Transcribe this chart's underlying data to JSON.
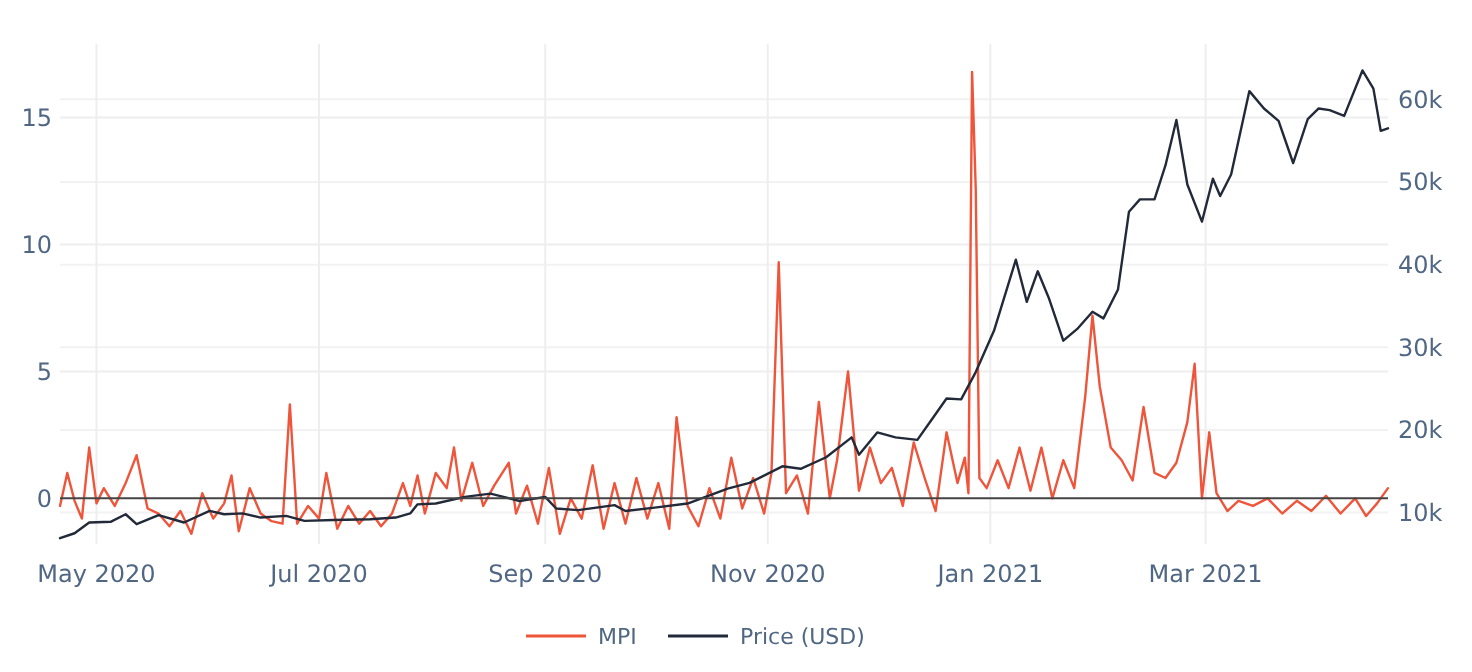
{
  "chart_data": {
    "type": "line",
    "xlim": [
      "2020-04-21",
      "2021-04-20"
    ],
    "xticks": [
      {
        "value": "2020-05-01",
        "label": "May 2020"
      },
      {
        "value": "2020-07-01",
        "label": "Jul 2020"
      },
      {
        "value": "2020-09-01",
        "label": "Sep 2020"
      },
      {
        "value": "2020-11-01",
        "label": "Nov 2020"
      },
      {
        "value": "2021-01-01",
        "label": "Jan 2021"
      },
      {
        "value": "2021-03-01",
        "label": "Mar 2021"
      }
    ],
    "ylim": [
      -1.8,
      17.9
    ],
    "yticks": [
      0,
      5,
      10,
      15
    ],
    "y2lim": [
      6200,
      66700
    ],
    "y2ticks": [
      {
        "value": 10000,
        "label": "10k"
      },
      {
        "value": 20000,
        "label": "20k"
      },
      {
        "value": 30000,
        "label": "30k"
      },
      {
        "value": 40000,
        "label": "40k"
      },
      {
        "value": 50000,
        "label": "50k"
      },
      {
        "value": 60000,
        "label": "60k"
      }
    ],
    "grid": true,
    "legend": "bottom",
    "line_style": "solid",
    "marker": "none",
    "series": [
      {
        "name": "MPI",
        "color": "#ef553b",
        "x": [
          "2020-04-21",
          "2020-04-23",
          "2020-04-25",
          "2020-04-27",
          "2020-04-29",
          "2020-05-01",
          "2020-05-03",
          "2020-05-06",
          "2020-05-09",
          "2020-05-12",
          "2020-05-15",
          "2020-05-18",
          "2020-05-21",
          "2020-05-24",
          "2020-05-27",
          "2020-05-30",
          "2020-06-02",
          "2020-06-05",
          "2020-06-07",
          "2020-06-09",
          "2020-06-12",
          "2020-06-15",
          "2020-06-18",
          "2020-06-21",
          "2020-06-23",
          "2020-06-25",
          "2020-06-28",
          "2020-07-01",
          "2020-07-03",
          "2020-07-06",
          "2020-07-09",
          "2020-07-12",
          "2020-07-15",
          "2020-07-18",
          "2020-07-21",
          "2020-07-24",
          "2020-07-26",
          "2020-07-28",
          "2020-07-30",
          "2020-08-02",
          "2020-08-05",
          "2020-08-07",
          "2020-08-09",
          "2020-08-12",
          "2020-08-15",
          "2020-08-18",
          "2020-08-22",
          "2020-08-24",
          "2020-08-27",
          "2020-08-30",
          "2020-09-02",
          "2020-09-05",
          "2020-09-08",
          "2020-09-11",
          "2020-09-14",
          "2020-09-17",
          "2020-09-20",
          "2020-09-23",
          "2020-09-26",
          "2020-09-29",
          "2020-10-02",
          "2020-10-05",
          "2020-10-07",
          "2020-10-10",
          "2020-10-13",
          "2020-10-16",
          "2020-10-19",
          "2020-10-22",
          "2020-10-25",
          "2020-10-28",
          "2020-10-31",
          "2020-11-02",
          "2020-11-04",
          "2020-11-06",
          "2020-11-09",
          "2020-11-12",
          "2020-11-15",
          "2020-11-18",
          "2020-11-20",
          "2020-11-23",
          "2020-11-26",
          "2020-11-29",
          "2020-12-02",
          "2020-12-05",
          "2020-12-08",
          "2020-12-11",
          "2020-12-14",
          "2020-12-17",
          "2020-12-20",
          "2020-12-23",
          "2020-12-25",
          "2020-12-26",
          "2020-12-27",
          "2020-12-28",
          "2020-12-29",
          "2020-12-31",
          "2021-01-03",
          "2021-01-06",
          "2021-01-09",
          "2021-01-12",
          "2021-01-15",
          "2021-01-18",
          "2021-01-21",
          "2021-01-24",
          "2021-01-27",
          "2021-01-29",
          "2021-01-31",
          "2021-02-03",
          "2021-02-06",
          "2021-02-09",
          "2021-02-12",
          "2021-02-15",
          "2021-02-18",
          "2021-02-21",
          "2021-02-24",
          "2021-02-26",
          "2021-02-28",
          "2021-03-02",
          "2021-03-04",
          "2021-03-07",
          "2021-03-10",
          "2021-03-14",
          "2021-03-18",
          "2021-03-22",
          "2021-03-26",
          "2021-03-30",
          "2021-04-03",
          "2021-04-07",
          "2021-04-11",
          "2021-04-14",
          "2021-04-17",
          "2021-04-20"
        ],
        "values": [
          -0.3,
          1.0,
          -0.1,
          -0.8,
          2.0,
          -0.2,
          0.4,
          -0.3,
          0.6,
          1.7,
          -0.4,
          -0.6,
          -1.1,
          -0.5,
          -1.4,
          0.2,
          -0.8,
          -0.2,
          0.9,
          -1.3,
          0.4,
          -0.6,
          -0.9,
          -1.0,
          3.7,
          -1.0,
          -0.3,
          -0.8,
          1.0,
          -1.2,
          -0.3,
          -1.0,
          -0.5,
          -1.1,
          -0.6,
          0.6,
          -0.3,
          0.9,
          -0.6,
          1.0,
          0.4,
          2.0,
          -0.1,
          1.4,
          -0.3,
          0.5,
          1.4,
          -0.6,
          0.5,
          -1.0,
          1.2,
          -1.4,
          0.0,
          -0.8,
          1.3,
          -1.2,
          0.6,
          -1.0,
          0.8,
          -0.8,
          0.6,
          -1.2,
          3.2,
          -0.3,
          -1.1,
          0.4,
          -0.8,
          1.6,
          -0.4,
          0.8,
          -0.6,
          1.0,
          9.3,
          0.2,
          0.9,
          -0.6,
          3.8,
          0.0,
          1.5,
          5.0,
          0.3,
          2.0,
          0.6,
          1.2,
          -0.3,
          2.2,
          0.8,
          -0.5,
          2.6,
          0.6,
          1.6,
          0.2,
          16.8,
          12.2,
          0.8,
          0.4,
          1.5,
          0.4,
          2.0,
          0.3,
          2.0,
          0.0,
          1.5,
          0.4,
          4.0,
          7.2,
          4.4,
          2.0,
          1.5,
          0.7,
          3.6,
          1.0,
          0.8,
          1.4,
          3.0,
          5.3,
          0.0,
          2.6,
          0.2,
          -0.5,
          -0.1,
          -0.3,
          0.0,
          -0.6,
          -0.1,
          -0.5,
          0.1,
          -0.6,
          0.0,
          -0.7,
          -0.2,
          0.4
        ]
      },
      {
        "name": "Price (USD)",
        "color": "#222a3a",
        "axis": "y2",
        "x": [
          "2020-04-21",
          "2020-04-25",
          "2020-04-29",
          "2020-05-05",
          "2020-05-09",
          "2020-05-12",
          "2020-05-18",
          "2020-05-25",
          "2020-06-01",
          "2020-06-05",
          "2020-06-10",
          "2020-06-15",
          "2020-06-22",
          "2020-06-27",
          "2020-07-05",
          "2020-07-15",
          "2020-07-22",
          "2020-07-26",
          "2020-07-28",
          "2020-08-02",
          "2020-08-10",
          "2020-08-17",
          "2020-08-25",
          "2020-09-01",
          "2020-09-04",
          "2020-09-10",
          "2020-09-20",
          "2020-09-23",
          "2020-10-01",
          "2020-10-10",
          "2020-10-21",
          "2020-10-27",
          "2020-11-05",
          "2020-11-10",
          "2020-11-17",
          "2020-11-24",
          "2020-11-26",
          "2020-12-01",
          "2020-12-06",
          "2020-12-12",
          "2020-12-16",
          "2020-12-20",
          "2020-12-24",
          "2020-12-28",
          "2021-01-02",
          "2021-01-08",
          "2021-01-11",
          "2021-01-14",
          "2021-01-17",
          "2021-01-21",
          "2021-01-25",
          "2021-01-29",
          "2021-02-01",
          "2021-02-05",
          "2021-02-08",
          "2021-02-11",
          "2021-02-15",
          "2021-02-18",
          "2021-02-21",
          "2021-02-24",
          "2021-02-28",
          "2021-03-03",
          "2021-03-05",
          "2021-03-08",
          "2021-03-13",
          "2021-03-17",
          "2021-03-21",
          "2021-03-25",
          "2021-03-29",
          "2021-04-01",
          "2021-04-04",
          "2021-04-08",
          "2021-04-13",
          "2021-04-16",
          "2021-04-18",
          "2021-04-20"
        ],
        "values": [
          6900,
          7500,
          8800,
          8900,
          9800,
          8600,
          9700,
          8800,
          10200,
          9800,
          9900,
          9400,
          9600,
          9000,
          9100,
          9200,
          9400,
          9900,
          11000,
          11100,
          11900,
          12300,
          11400,
          11900,
          10500,
          10300,
          10900,
          10200,
          10600,
          11100,
          12900,
          13600,
          15600,
          15300,
          16700,
          19100,
          17000,
          19700,
          19100,
          18800,
          21300,
          23800,
          23700,
          27000,
          32000,
          40600,
          35500,
          39200,
          36000,
          30800,
          32300,
          34300,
          33500,
          37000,
          46400,
          47900,
          47900,
          52000,
          57500,
          49700,
          45200,
          50400,
          48300,
          50900,
          61000,
          58900,
          57400,
          52300,
          57600,
          58900,
          58700,
          58000,
          63500,
          61300,
          56200,
          56500
        ]
      }
    ]
  }
}
